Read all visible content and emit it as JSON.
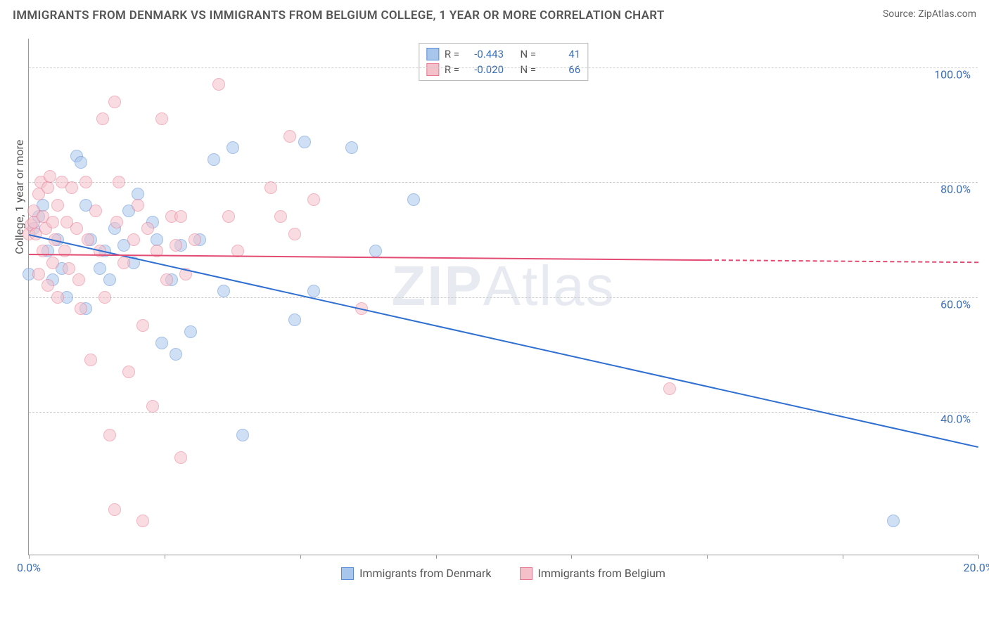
{
  "title": "IMMIGRANTS FROM DENMARK VS IMMIGRANTS FROM BELGIUM COLLEGE, 1 YEAR OR MORE CORRELATION CHART",
  "source": "Source: ZipAtlas.com",
  "watermark": {
    "part1": "ZIP",
    "part2": "Atlas"
  },
  "chart": {
    "type": "scatter",
    "y_axis_label": "College, 1 year or more",
    "xlim": [
      0,
      20
    ],
    "ylim": [
      15,
      105
    ],
    "x_ticks": [
      0,
      2.857,
      5.714,
      8.571,
      11.429,
      14.286,
      17.143,
      20
    ],
    "x_tick_labels": {
      "0": "0.0%",
      "20": "20.0%"
    },
    "y_ticks": [
      40,
      60,
      80,
      100
    ],
    "y_tick_labels": [
      "40.0%",
      "60.0%",
      "80.0%",
      "100.0%"
    ],
    "grid_color": "#cccccc",
    "axis_color": "#999999",
    "background_color": "#ffffff",
    "tick_label_color": "#3b6fb6",
    "axis_label_color": "#555555",
    "point_radius": 9,
    "point_opacity": 0.55,
    "series": [
      {
        "name": "Immigrants from Denmark",
        "fill_color": "#a8c5ec",
        "stroke_color": "#5b8dd6",
        "trend_color": "#2e6fd1",
        "stats": {
          "R": "-0.443",
          "N": "41"
        },
        "trend": {
          "x1": 0,
          "y1": 71,
          "x2": 20,
          "y2": 34
        },
        "points": [
          [
            0.0,
            64
          ],
          [
            0.1,
            72
          ],
          [
            0.2,
            74
          ],
          [
            0.3,
            76
          ],
          [
            0.4,
            68
          ],
          [
            0.5,
            63
          ],
          [
            0.6,
            70
          ],
          [
            0.7,
            65
          ],
          [
            0.8,
            60
          ],
          [
            1.0,
            84.5
          ],
          [
            1.1,
            83.5
          ],
          [
            1.2,
            76
          ],
          [
            1.2,
            58
          ],
          [
            1.3,
            70
          ],
          [
            1.5,
            65
          ],
          [
            1.6,
            68
          ],
          [
            1.7,
            63
          ],
          [
            1.8,
            72
          ],
          [
            2.0,
            69
          ],
          [
            2.1,
            75
          ],
          [
            2.2,
            66
          ],
          [
            2.3,
            78
          ],
          [
            2.6,
            73
          ],
          [
            2.7,
            70
          ],
          [
            2.8,
            52
          ],
          [
            3.0,
            63
          ],
          [
            3.1,
            50
          ],
          [
            3.2,
            69
          ],
          [
            3.4,
            54
          ],
          [
            3.6,
            70
          ],
          [
            3.9,
            84
          ],
          [
            4.1,
            61
          ],
          [
            4.3,
            86
          ],
          [
            4.5,
            36
          ],
          [
            5.6,
            56
          ],
          [
            5.8,
            87
          ],
          [
            6.0,
            61
          ],
          [
            6.8,
            86
          ],
          [
            7.3,
            68
          ],
          [
            8.1,
            77
          ],
          [
            18.2,
            21
          ]
        ]
      },
      {
        "name": "Immigrants from Belgium",
        "fill_color": "#f4c1cb",
        "stroke_color": "#e8788f",
        "trend_color": "#e34b72",
        "stats": {
          "R": "-0.020",
          "N": "66"
        },
        "trend": {
          "x1": 0,
          "y1": 67.5,
          "x2": 14.3,
          "y2": 66.5
        },
        "trend_dash": {
          "x1": 14.3,
          "y1": 66.5,
          "x2": 20,
          "y2": 66.1
        },
        "points": [
          [
            0.0,
            71
          ],
          [
            0.05,
            72.5
          ],
          [
            0.1,
            73
          ],
          [
            0.1,
            75
          ],
          [
            0.15,
            71
          ],
          [
            0.2,
            78
          ],
          [
            0.2,
            64
          ],
          [
            0.25,
            80
          ],
          [
            0.3,
            74
          ],
          [
            0.3,
            68
          ],
          [
            0.35,
            72
          ],
          [
            0.4,
            79
          ],
          [
            0.4,
            62
          ],
          [
            0.45,
            81
          ],
          [
            0.5,
            73
          ],
          [
            0.5,
            66
          ],
          [
            0.55,
            70
          ],
          [
            0.6,
            76
          ],
          [
            0.6,
            60
          ],
          [
            0.7,
            80
          ],
          [
            0.75,
            68
          ],
          [
            0.8,
            73
          ],
          [
            0.85,
            65
          ],
          [
            0.9,
            79
          ],
          [
            1.0,
            72
          ],
          [
            1.05,
            63
          ],
          [
            1.1,
            58
          ],
          [
            1.2,
            80
          ],
          [
            1.25,
            70
          ],
          [
            1.3,
            49
          ],
          [
            1.4,
            75
          ],
          [
            1.5,
            68
          ],
          [
            1.55,
            91
          ],
          [
            1.6,
            60
          ],
          [
            1.7,
            36
          ],
          [
            1.8,
            94
          ],
          [
            1.8,
            23
          ],
          [
            1.85,
            73
          ],
          [
            1.9,
            80
          ],
          [
            2.0,
            66
          ],
          [
            2.1,
            47
          ],
          [
            2.2,
            70
          ],
          [
            2.3,
            76
          ],
          [
            2.4,
            55
          ],
          [
            2.4,
            21
          ],
          [
            2.5,
            72
          ],
          [
            2.6,
            41
          ],
          [
            2.7,
            68
          ],
          [
            2.8,
            91
          ],
          [
            2.9,
            63
          ],
          [
            3.0,
            74
          ],
          [
            3.1,
            69
          ],
          [
            3.2,
            32
          ],
          [
            3.2,
            74
          ],
          [
            3.3,
            64
          ],
          [
            3.5,
            70
          ],
          [
            4.0,
            97
          ],
          [
            4.2,
            74
          ],
          [
            4.4,
            68
          ],
          [
            5.1,
            79
          ],
          [
            5.3,
            74
          ],
          [
            5.5,
            88
          ],
          [
            5.6,
            71
          ],
          [
            6.0,
            77
          ],
          [
            7.0,
            58
          ],
          [
            13.5,
            44
          ]
        ]
      }
    ]
  },
  "legend_top": {
    "R_label": "R =",
    "N_label": "N ="
  }
}
